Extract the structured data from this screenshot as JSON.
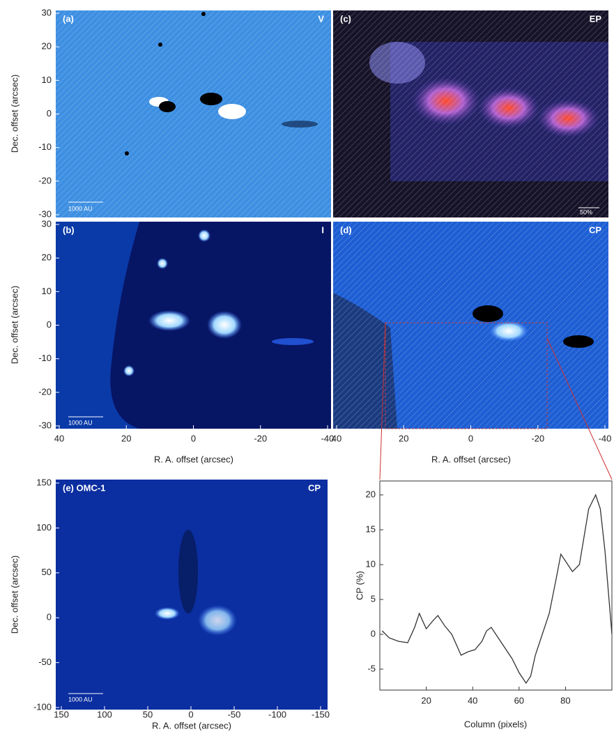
{
  "panels": [
    {
      "label": "(a)",
      "stokes": "V",
      "scale_bar": "1000 AU"
    },
    {
      "label": "(c)",
      "stokes": "EP",
      "scale_bar": "50%"
    },
    {
      "label": "(b)",
      "stokes": "I",
      "scale_bar": "1000 AU"
    },
    {
      "label": "(d)",
      "stokes": "CP"
    },
    {
      "label": "(e) OMC-1",
      "stokes": "CP",
      "scale_bar": "1000 AU"
    }
  ],
  "axes": {
    "dec_label": "Dec. offset (arcsec)",
    "ra_label": "R. A. offset (arcsec)",
    "inner_yticks": [
      30,
      20,
      10,
      0,
      -10,
      -20,
      -30
    ],
    "inner_ylim": [
      -30,
      30
    ],
    "inner_xticks": [
      40,
      20,
      0,
      -20,
      -40
    ],
    "inner_xlim": [
      40,
      -40
    ],
    "wide_yticks": [
      150,
      100,
      50,
      0,
      -50,
      -100
    ],
    "wide_ylim": [
      -100,
      150
    ],
    "wide_xticks": [
      150,
      100,
      50,
      0,
      -50,
      -100,
      -150
    ],
    "wide_xlim": [
      150,
      -150
    ]
  },
  "chart_data": {
    "type": "line",
    "x_label": "Column (pixels)",
    "y_label": "CP (%)",
    "x": [
      1,
      4,
      8,
      12,
      15,
      17,
      20,
      23,
      25,
      28,
      31,
      35,
      38,
      41,
      44,
      46,
      48,
      51,
      54,
      57,
      60,
      63,
      65,
      67,
      70,
      73,
      76,
      78,
      80,
      83,
      86,
      88,
      90,
      93,
      95,
      97,
      100
    ],
    "series": [
      {
        "color": "#333333",
        "values": [
          0.5,
          -0.5,
          -1,
          -1.2,
          1,
          3,
          0.8,
          2,
          2.7,
          1.2,
          0,
          -3,
          -2.5,
          -2.2,
          -1,
          0.5,
          1,
          -0.5,
          -2,
          -3.5,
          -5.5,
          -7,
          -6,
          -3,
          0,
          3,
          8,
          11.5,
          10.5,
          9,
          10,
          14,
          18,
          20,
          18,
          12,
          0
        ]
      }
    ],
    "xlim": [
      0,
      100
    ],
    "ylim": [
      -8,
      22
    ],
    "xticks": [
      20,
      40,
      60,
      80
    ],
    "yticks": [
      -5,
      0,
      5,
      10,
      15,
      20
    ]
  }
}
